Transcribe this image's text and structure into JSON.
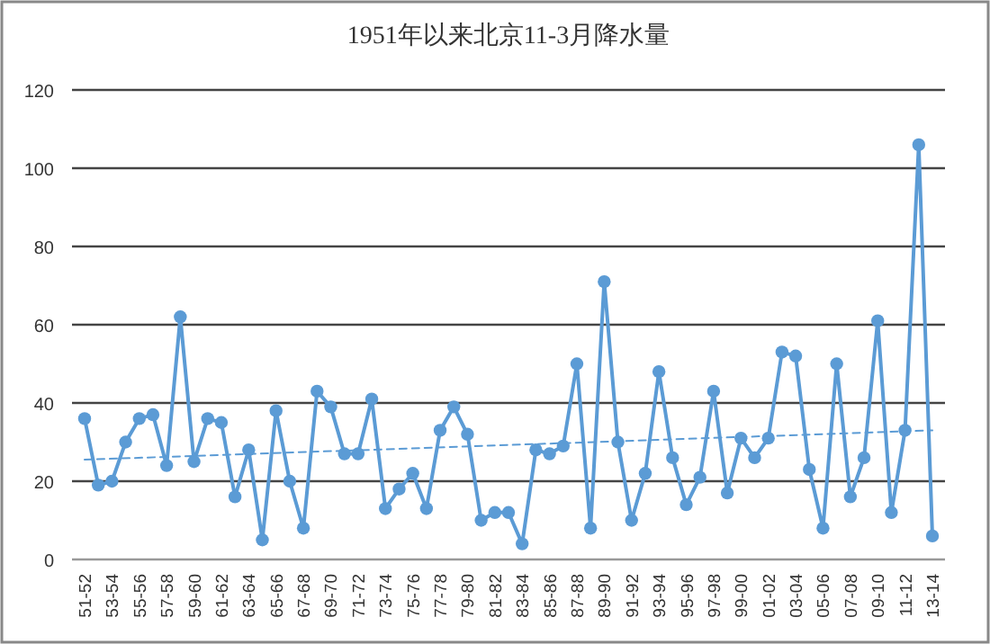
{
  "chart_data": {
    "type": "line",
    "title": "1951年以来北京11-3月降水量",
    "categories": [
      "51-52",
      null,
      "53-54",
      null,
      "55-56",
      null,
      "57-58",
      null,
      "59-60",
      null,
      "61-62",
      null,
      "63-64",
      null,
      "65-66",
      null,
      "67-68",
      null,
      "69-70",
      null,
      "71-72",
      null,
      "73-74",
      null,
      "75-76",
      null,
      "77-78",
      null,
      "79-80",
      null,
      "81-82",
      null,
      "83-84",
      null,
      "85-86",
      null,
      "87-88",
      null,
      "89-90",
      null,
      "91-92",
      null,
      "93-94",
      null,
      "95-96",
      null,
      "97-98",
      null,
      "99-00",
      null,
      "01-02",
      null,
      "03-04",
      null,
      "05-06",
      null,
      "07-08",
      null,
      "09-10",
      null,
      "11-12",
      null,
      "13-14"
    ],
    "series": [
      {
        "color": "#5b9bd5",
        "marker": "circle",
        "line_style": "solid",
        "values": [
          36,
          19,
          20,
          30,
          36,
          37,
          24,
          62,
          25,
          36,
          35,
          16,
          28,
          5,
          38,
          20,
          8,
          43,
          39,
          27,
          27,
          41,
          13,
          18,
          22,
          13,
          33,
          39,
          32,
          10,
          12,
          12,
          4,
          28,
          27,
          29,
          50,
          8,
          71,
          30,
          10,
          22,
          48,
          26,
          14,
          21,
          43,
          17,
          31,
          26,
          31,
          53,
          52,
          23,
          8,
          50,
          16,
          26,
          61,
          12,
          33,
          106,
          6
        ]
      },
      {
        "color": "#5b9bd5",
        "marker": "none",
        "line_style": "dashed",
        "x": [
          "51-52",
          "13-14"
        ],
        "values": [
          25.5,
          33
        ]
      }
    ],
    "ylim": [
      0,
      120
    ],
    "yticks": [
      0,
      20,
      40,
      60,
      80,
      100,
      120
    ],
    "grid": "y"
  }
}
